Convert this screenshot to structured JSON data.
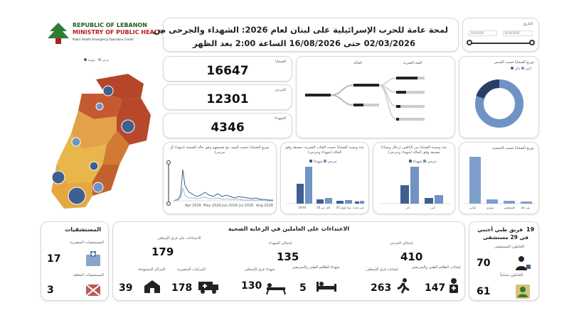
{
  "header": {
    "ministry_line1": "REPUBLIC OF LEBANON",
    "ministry_line2": "MINISTRY OF PUBLIC HEALTH",
    "ministry_line3": "Public Health Emergency Operation Center",
    "title_line1": "لمحة عامة للحرب الإسرائيلية على لبنان لعام 2026: الشهداء والجرحى من",
    "title_line2": "02/03/2026 حتى 16/08/2026 الساعة 2:00 بعد الظهر",
    "date_label": "التاريخ",
    "date_from": "2/3/2026",
    "date_to": "8/16/2026"
  },
  "totals": {
    "injured_label": "الجرحى",
    "injured_value": "12301",
    "martyrs_label": "الشهداء",
    "martyrs_value": "4346",
    "victims_label": "الضحايا",
    "victims_value": "16647"
  },
  "tree_chart": {
    "label_a": "الحالة",
    "label_b": "الفئة العمرية",
    "root": "الضحايا"
  },
  "donut_chart": {
    "title": "توزيع الضحايا حسب الجنس",
    "legend_female": "أنثى",
    "legend_male": "ذكر"
  },
  "map_legend": {
    "a": "جرحى",
    "b": "شهداء"
  },
  "time_chart": {
    "title": "توزيع الضحايا حسب اليوم، مع تصنيفهم وفق حالة الضحية (شهداء أو جرحى)",
    "x_ticks": [
      "Apr 2026",
      "May 2026",
      "Jun 2026",
      "Jul 2026",
      "Aug 2026"
    ]
  },
  "age_chart": {
    "title": "عدد ونسبة الضحايا حسب الفئات العمرية، مصنفة وفق الحالة (شهداء وجرحى)",
    "legend_a": "جرحى",
    "legend_b": "شهداء",
    "categories": [
      "18-64",
      "أقل من 18",
      "65 وما فوق",
      "غير محدد"
    ]
  },
  "adult_chart": {
    "title": "عدد ونسبة الضحايا من البالغين (رجال ونساء) مصنفة وفق الحالة (شهداء وجرحى)",
    "legend_a": "جرحى",
    "legend_b": "شهداء",
    "categories": [
      "ذكر",
      "أنثى"
    ]
  },
  "gender_chart": {
    "title": "توزيع الضحايا حسب الجنسية",
    "categories": [
      "لبناني",
      "سوري",
      "فلسطيني",
      "غير ذلك"
    ]
  },
  "hospitals": {
    "title": "المستشفيات",
    "affected_label": "المستشفيات المتضررة",
    "affected_value": "17",
    "closed_label": "المستشفيات المغلقة",
    "closed_value": "3"
  },
  "health_workers": {
    "title": "الاعتداءات على العاملين في الرعاية الصحية",
    "attacks_label": "الاعتداءات على فرق الإسعاف",
    "attacks_value": "179",
    "total_martyrs_label": "إجمالي الشهداء",
    "total_martyrs_value": "135",
    "total_injured_label": "إجمالي الجرحى",
    "total_injured_value": "410",
    "centers_label": "المراكز المستهدفة",
    "centers_value": "39",
    "vehicles_label": "المركبات المتضررة",
    "vehicles_value": "178",
    "ambulance_martyrs_label": "شهداء فرق الإسعاف",
    "ambulance_martyrs_value": "130",
    "medical_martyrs_label": "شهداء الطاقم الطبي والتمريضي",
    "medical_martyrs_value": "5",
    "ambulance_injured_label": "إصابات فرق الإسعاف",
    "ambulance_injured_value": "263",
    "medical_injured_label": "إصابات الطاقم الطبي والتمريضي",
    "medical_injured_value": "147"
  },
  "foreign_teams": {
    "count": "19",
    "title_a": "فريق طبي أجنبي",
    "title_b": "في 29 مستشفى",
    "hospital_label": "العاملون المستشفى",
    "hospital_value": "70",
    "field_label": "العاملون ميدانياً",
    "field_value": "61"
  },
  "colors": {
    "accent_blue": "#3f5f8f",
    "light_blue": "#6f93c4",
    "map_red": "#b6452a",
    "map_orange": "#d27a34",
    "map_yellow": "#e8b64a"
  }
}
